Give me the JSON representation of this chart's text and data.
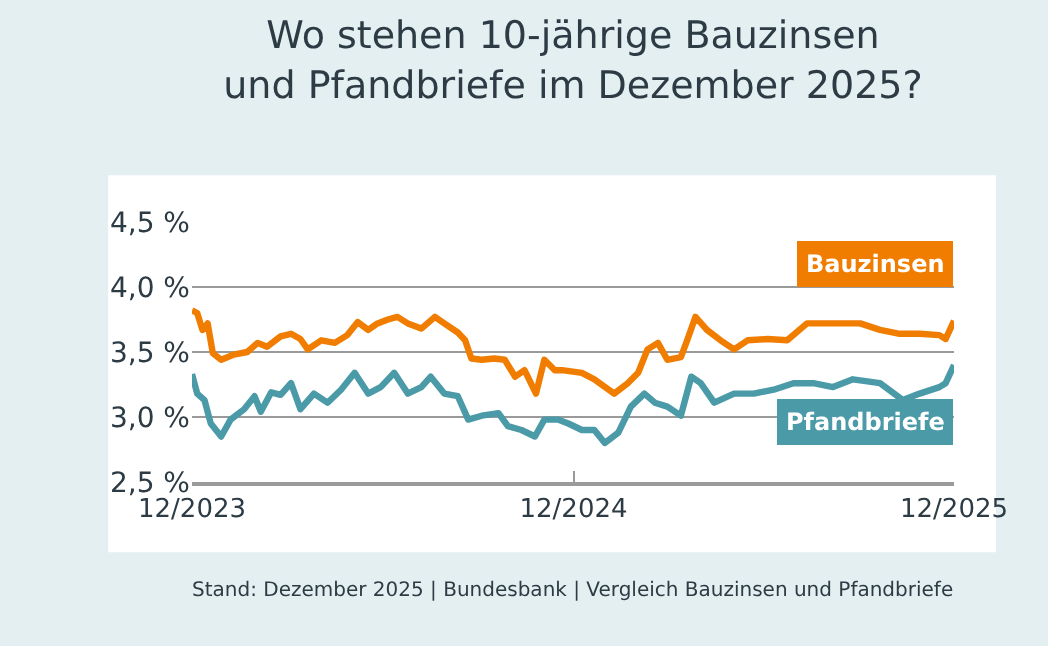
{
  "chart_data": {
    "type": "line",
    "title": "Wo stehen 10-jährige Bauzinsen\nund Pfandbriefe im Dezember 2025?",
    "annotations": [
      "Stand: Dezember 2025 | Bundesbank | Vergleich Bauzinsen und Pfandbriefe"
    ],
    "series": [
      {
        "name": "Bauzinsen",
        "color": "#f07d00",
        "x": [
          "2023-12-01",
          "2023-12-06",
          "2023-12-11",
          "2023-12-16",
          "2023-12-21",
          "2023-12-29",
          "2024-01-04",
          "2024-01-10",
          "2024-01-23",
          "2024-02-02",
          "2024-02-11",
          "2024-02-24",
          "2024-03-05",
          "2024-03-14",
          "2024-03-21",
          "2024-04-03",
          "2024-04-16",
          "2024-04-28",
          "2024-05-08",
          "2024-05-18",
          "2024-05-27",
          "2024-06-06",
          "2024-06-15",
          "2024-06-25",
          "2024-07-08",
          "2024-07-21",
          "2024-07-30",
          "2024-08-12",
          "2024-08-19",
          "2024-08-25",
          "2024-09-04",
          "2024-09-16",
          "2024-09-26",
          "2024-10-06",
          "2024-10-15",
          "2024-10-26",
          "2024-11-03",
          "2024-11-13",
          "2024-11-20",
          "2024-12-09",
          "2024-12-21",
          "2025-01-09",
          "2025-01-22",
          "2025-02-01",
          "2025-02-10",
          "2025-02-20",
          "2025-03-01",
          "2025-03-14",
          "2025-03-20",
          "2025-03-28",
          "2025-04-08",
          "2025-04-21",
          "2025-05-04",
          "2025-05-17",
          "2025-06-05",
          "2025-06-24",
          "2025-07-13",
          "2025-08-07",
          "2025-09-02",
          "2025-09-21",
          "2025-10-10",
          "2025-10-29",
          "2025-11-17",
          "2025-11-23",
          "2025-12-01"
        ],
        "values": [
          3.82,
          3.8,
          3.67,
          3.72,
          3.49,
          3.44,
          3.46,
          3.48,
          3.5,
          3.57,
          3.54,
          3.62,
          3.64,
          3.6,
          3.52,
          3.59,
          3.57,
          3.63,
          3.73,
          3.67,
          3.72,
          3.75,
          3.77,
          3.72,
          3.68,
          3.77,
          3.72,
          3.65,
          3.59,
          3.45,
          3.44,
          3.45,
          3.44,
          3.31,
          3.36,
          3.18,
          3.44,
          3.36,
          3.36,
          3.34,
          3.29,
          3.18,
          3.26,
          3.34,
          3.52,
          3.57,
          3.44,
          3.46,
          3.59,
          3.77,
          3.67,
          3.59,
          3.52,
          3.59,
          3.6,
          3.59,
          3.72,
          3.72,
          3.72,
          3.67,
          3.64,
          3.64,
          3.63,
          3.6,
          3.74
        ]
      },
      {
        "name": "Pfandbriefe",
        "color": "#4a9aa8",
        "x": [
          "2023-12-01",
          "2023-12-06",
          "2023-12-13",
          "2023-12-19",
          "2023-12-29",
          "2024-01-07",
          "2024-01-20",
          "2024-01-30",
          "2024-02-05",
          "2024-02-15",
          "2024-02-24",
          "2024-03-05",
          "2024-03-14",
          "2024-03-27",
          "2024-04-09",
          "2024-04-22",
          "2024-05-05",
          "2024-05-18",
          "2024-05-30",
          "2024-06-12",
          "2024-06-25",
          "2024-07-08",
          "2024-07-17",
          "2024-07-30",
          "2024-08-12",
          "2024-08-22",
          "2024-09-04",
          "2024-09-20",
          "2024-09-29",
          "2024-10-12",
          "2024-10-25",
          "2024-11-03",
          "2024-11-16",
          "2024-11-26",
          "2024-12-09",
          "2024-12-21",
          "2024-12-31",
          "2025-01-13",
          "2025-01-25",
          "2025-02-07",
          "2025-02-17",
          "2025-03-01",
          "2025-03-14",
          "2025-03-24",
          "2025-04-02",
          "2025-04-15",
          "2025-05-04",
          "2025-05-23",
          "2025-06-11",
          "2025-06-30",
          "2025-07-19",
          "2025-08-07",
          "2025-08-26",
          "2025-09-21",
          "2025-10-13",
          "2025-10-29",
          "2025-11-17",
          "2025-11-23",
          "2025-12-01"
        ],
        "values": [
          3.33,
          3.18,
          3.13,
          2.95,
          2.85,
          2.98,
          3.06,
          3.16,
          3.04,
          3.19,
          3.17,
          3.26,
          3.06,
          3.18,
          3.11,
          3.21,
          3.34,
          3.18,
          3.23,
          3.34,
          3.18,
          3.23,
          3.31,
          3.18,
          3.16,
          2.98,
          3.01,
          3.03,
          2.93,
          2.9,
          2.85,
          2.98,
          2.98,
          2.95,
          2.9,
          2.9,
          2.8,
          2.88,
          3.08,
          3.18,
          3.11,
          3.08,
          3.01,
          3.31,
          3.26,
          3.11,
          3.18,
          3.18,
          3.21,
          3.26,
          3.26,
          3.23,
          3.29,
          3.26,
          3.13,
          3.18,
          3.23,
          3.26,
          3.4
        ]
      }
    ],
    "xlim": [
      "2023-12-01",
      "2025-12-01"
    ],
    "xticks": [
      {
        "value": "2023-12-01",
        "label": "12/2023"
      },
      {
        "value": "2024-12-01",
        "label": "12/2024"
      },
      {
        "value": "2025-12-01",
        "label": "12/2025"
      }
    ],
    "ylim": [
      2.5,
      4.5
    ],
    "yticks": [
      {
        "value": 2.5,
        "label": "2,5 %"
      },
      {
        "value": 3.0,
        "label": "3,0 %"
      },
      {
        "value": 3.5,
        "label": "3,5 %"
      },
      {
        "value": 4.0,
        "label": "4,0 %"
      },
      {
        "value": 4.5,
        "label": "4,5 %"
      }
    ],
    "grid": "y",
    "legend": false,
    "marker": "none",
    "line_style": "solid"
  }
}
